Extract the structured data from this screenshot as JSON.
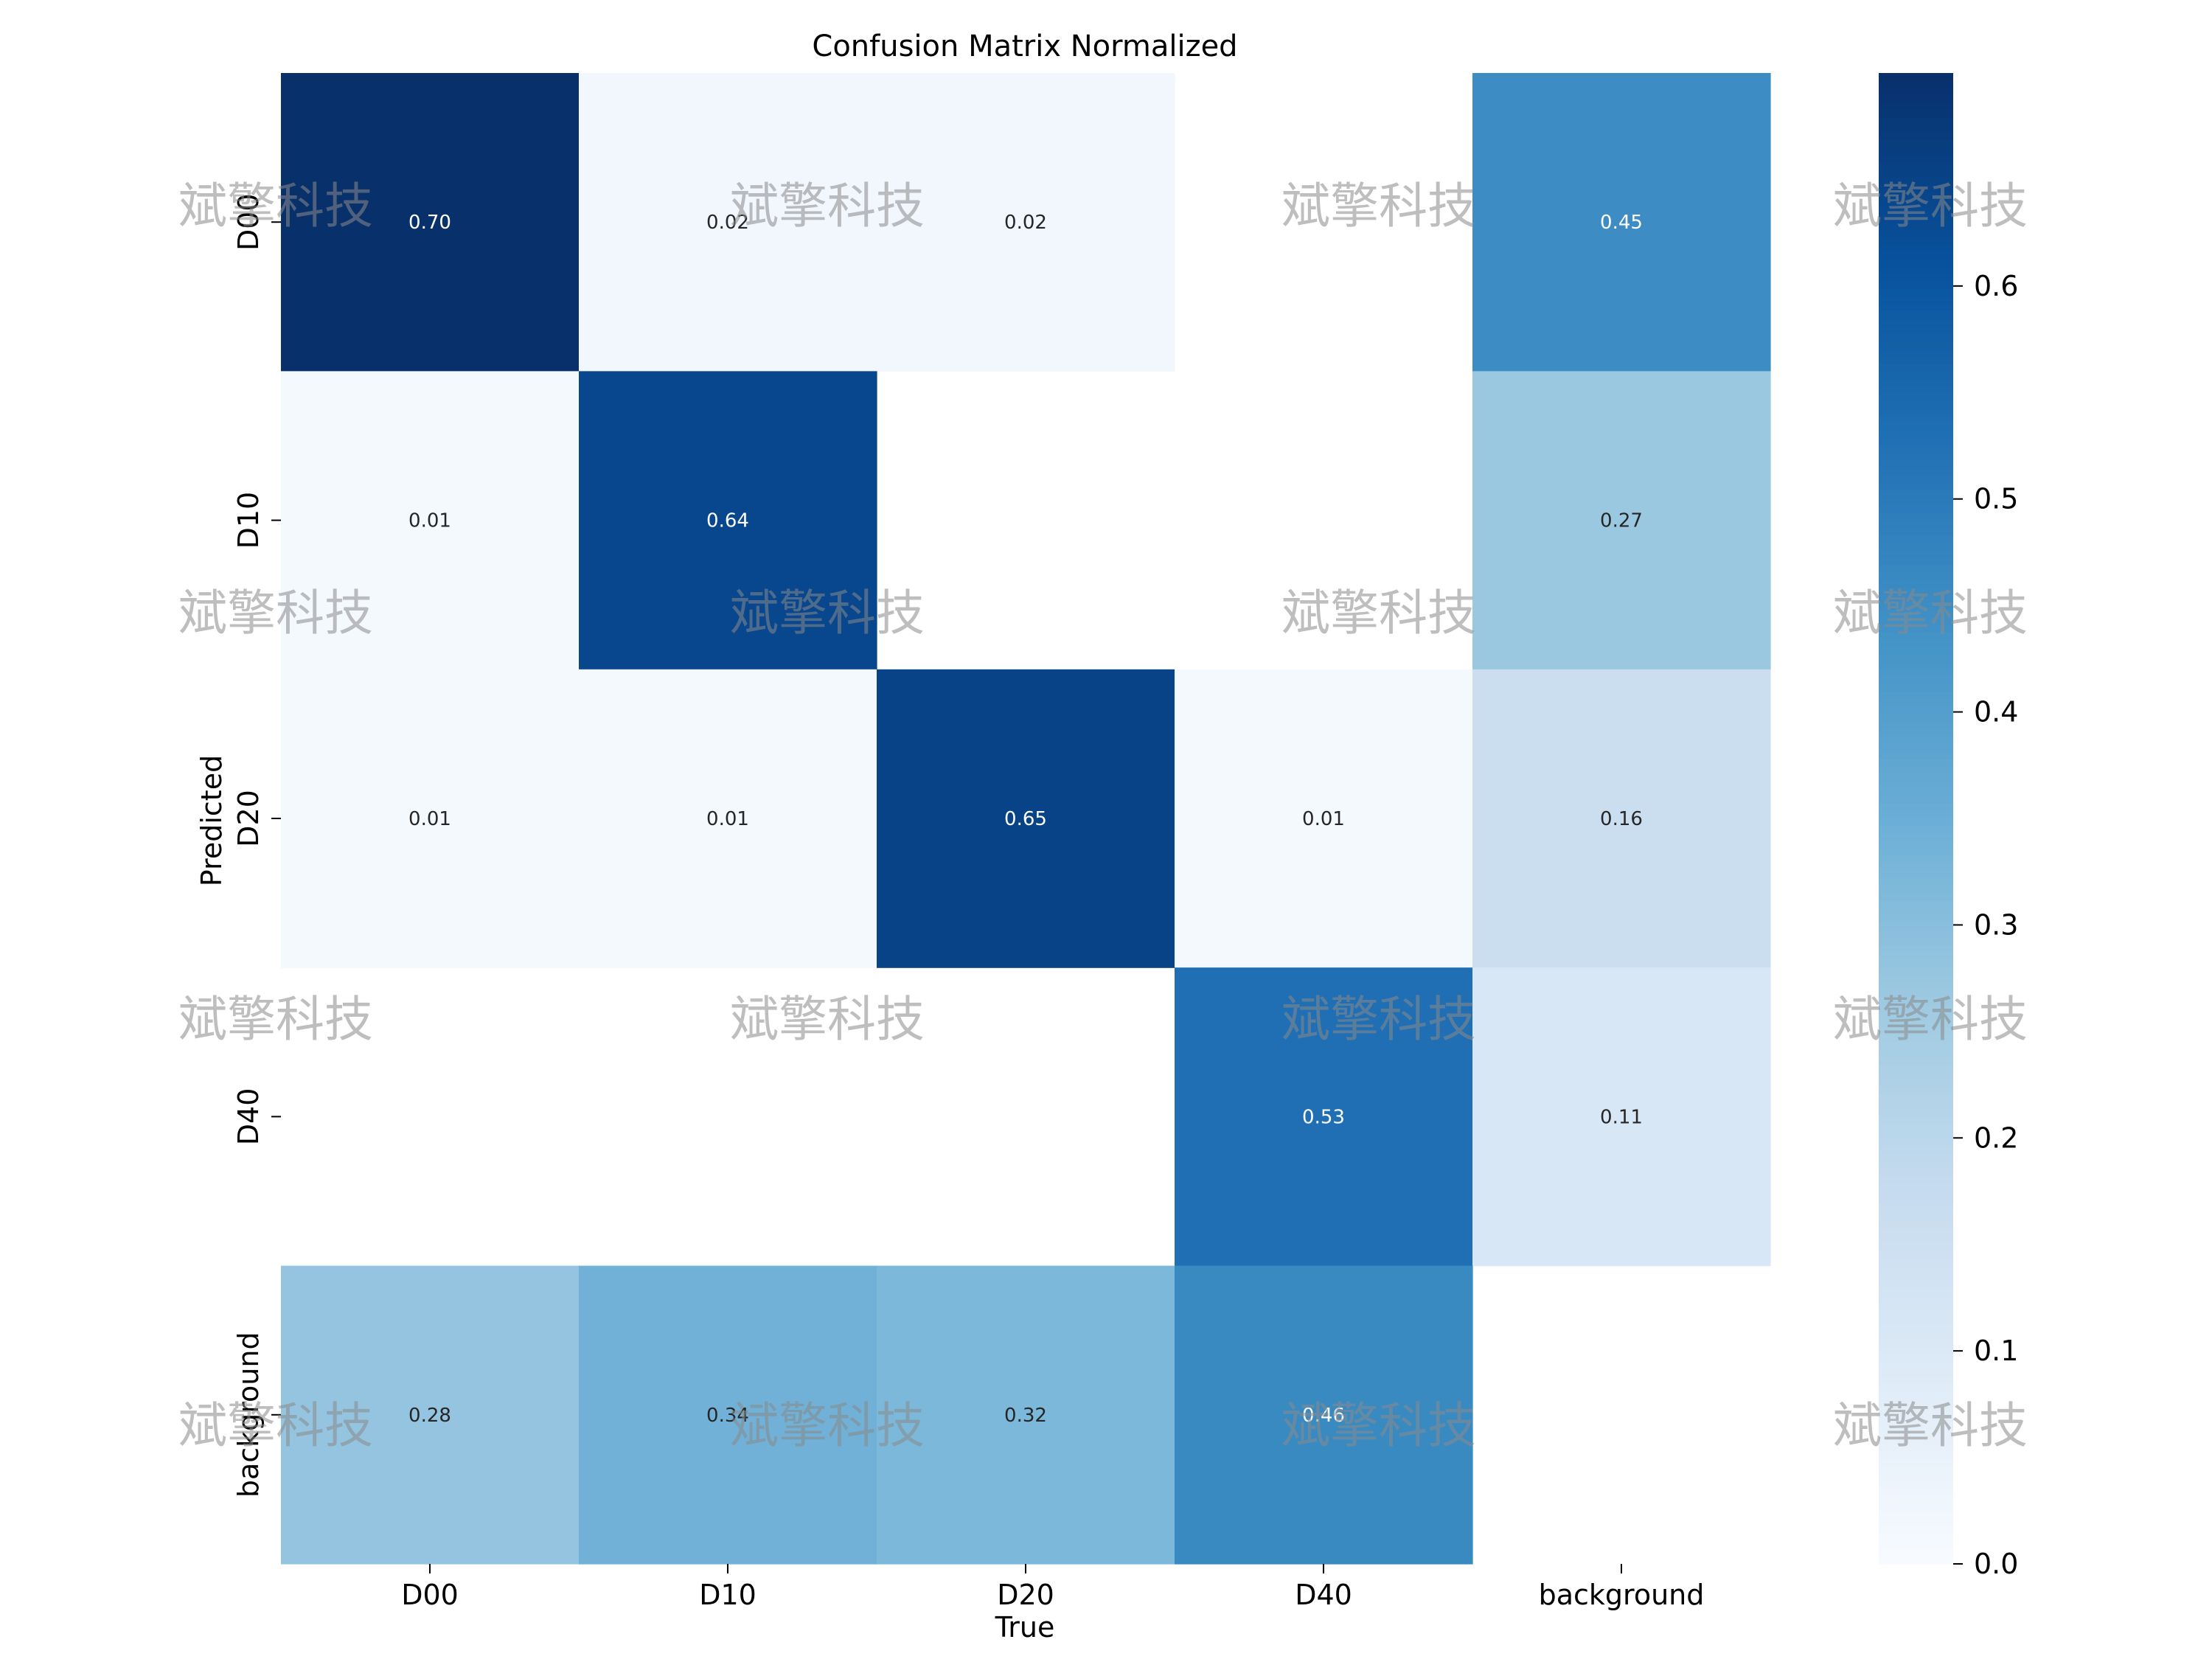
{
  "chart_data": {
    "type": "heatmap",
    "title": "Confusion Matrix Normalized",
    "xlabel": "True",
    "ylabel": "Predicted",
    "x_categories": [
      "D00",
      "D10",
      "D20",
      "D40",
      "background"
    ],
    "y_categories": [
      "D00",
      "D10",
      "D20",
      "D40",
      "background"
    ],
    "values": [
      [
        0.7,
        0.02,
        0.02,
        null,
        0.45
      ],
      [
        0.01,
        0.64,
        null,
        null,
        0.27
      ],
      [
        0.01,
        0.01,
        0.65,
        0.01,
        0.16
      ],
      [
        null,
        null,
        null,
        0.53,
        0.11
      ],
      [
        0.28,
        0.34,
        0.32,
        0.46,
        null
      ]
    ],
    "colormap": "Blues",
    "vmin": 0.0,
    "vmax": 0.7,
    "colorbar_ticks": [
      0.0,
      0.1,
      0.2,
      0.3,
      0.4,
      0.5,
      0.6
    ],
    "colorbar_tick_labels": [
      "0.0",
      "0.1",
      "0.2",
      "0.3",
      "0.4",
      "0.5",
      "0.6"
    ]
  },
  "watermark": {
    "text": "斌擎科技"
  }
}
